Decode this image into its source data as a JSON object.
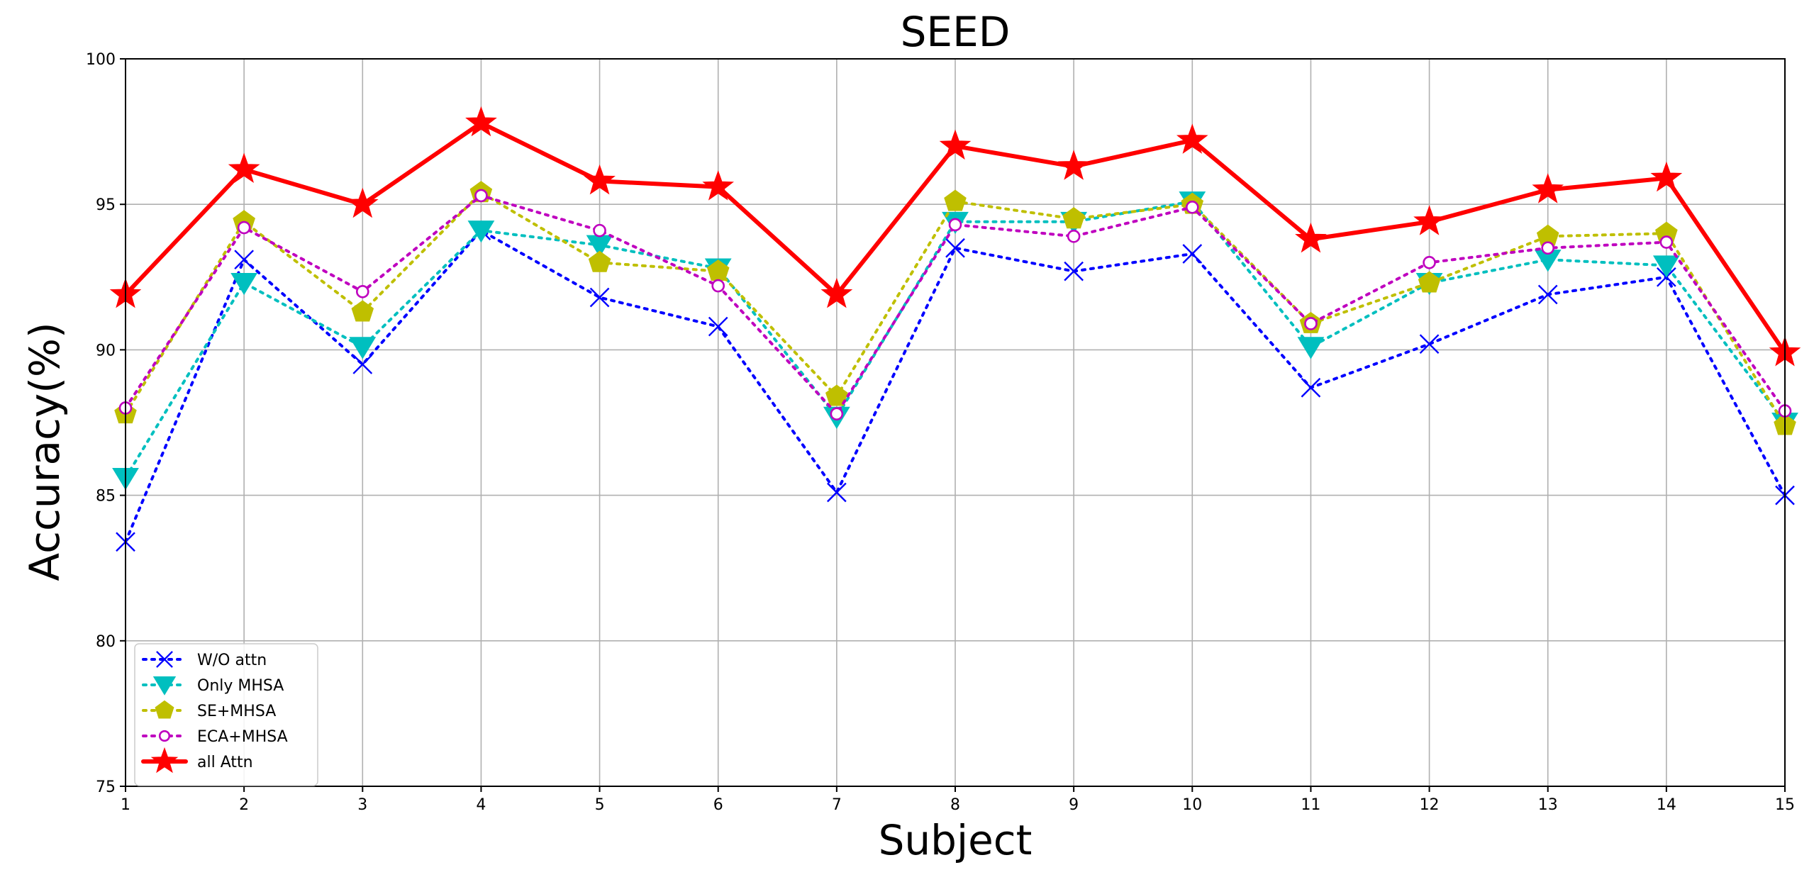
{
  "chart_data": {
    "type": "line",
    "title": "SEED",
    "xlabel": "Subject",
    "ylabel": "Accuracy(%)",
    "x": [
      1,
      2,
      3,
      4,
      5,
      6,
      7,
      8,
      9,
      10,
      11,
      12,
      13,
      14,
      15
    ],
    "xlim": [
      1,
      15
    ],
    "ylim": [
      75,
      100
    ],
    "yticks": [
      75,
      80,
      85,
      90,
      95,
      100
    ],
    "grid": true,
    "legend_position": "bottom-left",
    "series": [
      {
        "name": "W/O attn",
        "color": "#0000ff",
        "linestyle": "dotted",
        "marker": "x",
        "values": [
          83.4,
          93.1,
          89.5,
          94.1,
          91.8,
          90.8,
          85.1,
          93.5,
          92.7,
          93.3,
          88.7,
          90.2,
          91.9,
          92.5,
          85.0
        ]
      },
      {
        "name": "Only MHSA",
        "color": "#00bfbf",
        "linestyle": "dotted",
        "marker": "triangle-down",
        "values": [
          85.6,
          92.3,
          90.1,
          94.1,
          93.6,
          92.8,
          87.7,
          94.4,
          94.4,
          95.1,
          90.1,
          92.3,
          93.1,
          92.9,
          87.5
        ]
      },
      {
        "name": "SE+MHSA",
        "color": "#bfbf00",
        "linestyle": "dotted",
        "marker": "pentagon",
        "values": [
          87.8,
          94.4,
          91.3,
          95.4,
          93.0,
          92.7,
          88.4,
          95.1,
          94.5,
          95.0,
          90.9,
          92.3,
          93.9,
          94.0,
          87.4
        ]
      },
      {
        "name": "ECA+MHSA",
        "color": "#bf00bf",
        "linestyle": "dotted",
        "marker": "circle-open",
        "values": [
          88.0,
          94.2,
          92.0,
          95.3,
          94.1,
          92.2,
          87.8,
          94.3,
          93.9,
          94.9,
          90.9,
          93.0,
          93.5,
          93.7,
          87.9
        ]
      },
      {
        "name": "all Attn",
        "color": "#ff0000",
        "linestyle": "solid",
        "marker": "star",
        "values": [
          91.9,
          96.2,
          95.0,
          97.8,
          95.8,
          95.6,
          91.9,
          97.0,
          96.3,
          97.2,
          93.8,
          94.4,
          95.5,
          95.9,
          89.9
        ]
      }
    ]
  }
}
